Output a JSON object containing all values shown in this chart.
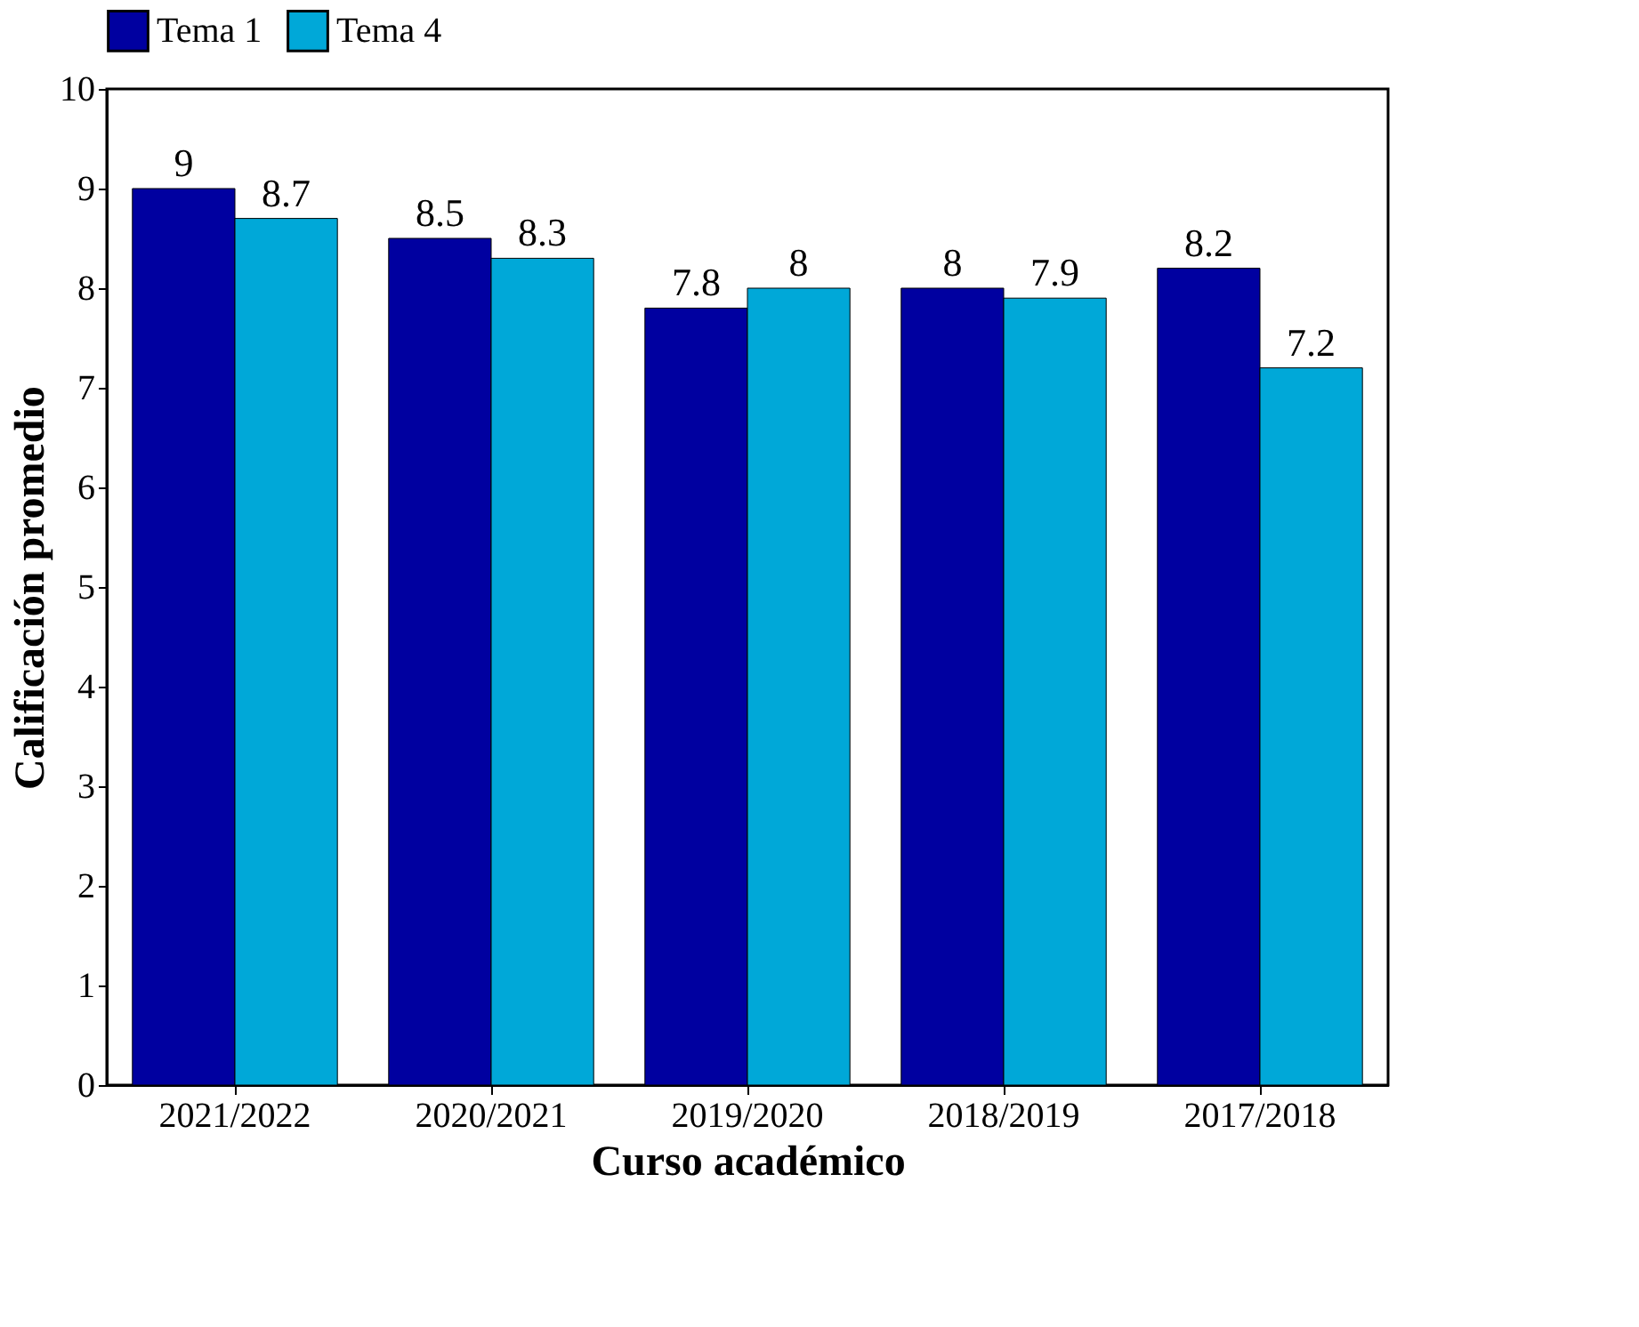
{
  "chart_data": {
    "type": "bar",
    "xlabel": "Curso académico",
    "ylabel": "Calificación promedio",
    "categories": [
      "2021/2022",
      "2020/2021",
      "2019/2020",
      "2018/2019",
      "2017/2018"
    ],
    "series": [
      {
        "name": "Tema 1",
        "color": "#0000a0",
        "values": [
          9,
          8.5,
          7.8,
          8,
          8.2
        ]
      },
      {
        "name": "Tema 4",
        "color": "#00a8d8",
        "values": [
          8.7,
          8.3,
          8,
          7.9,
          7.2
        ]
      }
    ],
    "ylim": [
      0,
      10
    ],
    "yticks": [
      0,
      1,
      2,
      3,
      4,
      5,
      6,
      7,
      8,
      9,
      10
    ],
    "data_labels": true,
    "legend": "top",
    "grid": false
  }
}
